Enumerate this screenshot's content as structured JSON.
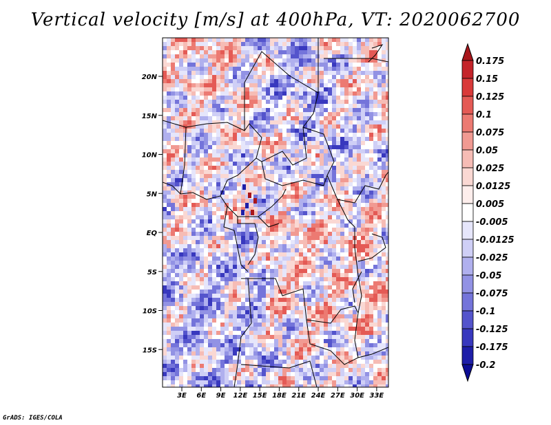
{
  "title": "Vertical velocity [m/s] at 400hPa, VT: 2020062700",
  "footer": "GrADS: IGES/COLA",
  "lat_labels": [
    "20N",
    "15N",
    "10N",
    "5N",
    "EQ",
    "5S",
    "10S",
    "15S"
  ],
  "lon_labels": [
    "3E",
    "6E",
    "9E",
    "12E",
    "15E",
    "18E",
    "21E",
    "24E",
    "27E",
    "30E",
    "33E"
  ],
  "colorbar": {
    "levels": [
      "0.175",
      "0.15",
      "0.125",
      "0.1",
      "0.075",
      "0.05",
      "0.025",
      "0.0125",
      "0.005",
      "-0.005",
      "-0.0125",
      "-0.025",
      "-0.05",
      "-0.075",
      "-0.1",
      "-0.125",
      "-0.175",
      "-0.2"
    ],
    "colors": [
      "#a8161b",
      "#c4242a",
      "#d93a3a",
      "#e45a55",
      "#ec7a72",
      "#f19a92",
      "#f6bcb5",
      "#fad8d3",
      "#fdeeec",
      "#ffffff",
      "#e6e6fb",
      "#cfcff6",
      "#b0b0ee",
      "#9292e4",
      "#7474da",
      "#5454cc",
      "#3838be",
      "#1e1ea8",
      "#0d0d94"
    ]
  },
  "field_palette": [
    "#3838be",
    "#5454cc",
    "#7474da",
    "#9292e4",
    "#b0b0ee",
    "#cfcff6",
    "#e6e6fb",
    "#ffffff",
    "#fad8d3",
    "#f6bcb5",
    "#f19a92",
    "#ec7a72",
    "#e45a55",
    "#c4242a"
  ]
}
